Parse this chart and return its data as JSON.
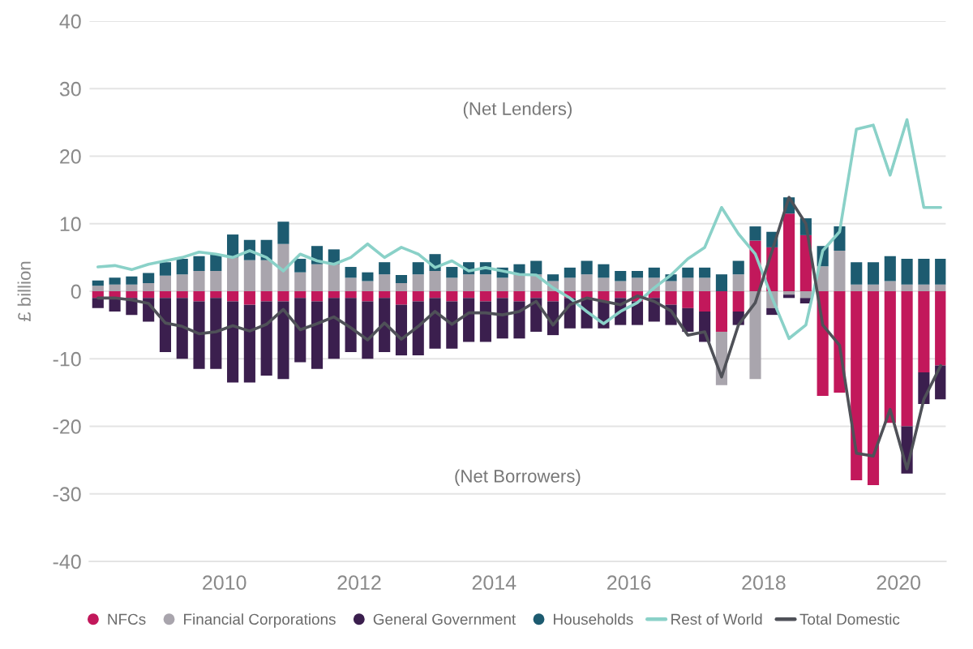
{
  "chart_data": {
    "type": "bar",
    "stacked": true,
    "x": [
      2008.125,
      2008.375,
      2008.625,
      2008.875,
      2009.125,
      2009.375,
      2009.625,
      2009.875,
      2010.125,
      2010.375,
      2010.625,
      2010.875,
      2011.125,
      2011.375,
      2011.625,
      2011.875,
      2012.125,
      2012.375,
      2012.625,
      2012.875,
      2013.125,
      2013.375,
      2013.625,
      2013.875,
      2014.125,
      2014.375,
      2014.625,
      2014.875,
      2015.125,
      2015.375,
      2015.625,
      2015.875,
      2016.125,
      2016.375,
      2016.625,
      2016.875,
      2017.125,
      2017.375,
      2017.625,
      2017.875,
      2018.125,
      2018.375,
      2018.625,
      2018.875,
      2019.125,
      2019.375,
      2019.625,
      2019.875,
      2020.125,
      2020.375,
      2020.625
    ],
    "series": [
      {
        "name": "NFCs",
        "color": "#c2185b",
        "values": [
          -1.0,
          -1.0,
          -1.0,
          -1.0,
          -1.0,
          -1.0,
          -1.5,
          -1.0,
          -1.5,
          -2.0,
          -1.5,
          -1.5,
          -1.0,
          -1.5,
          -1.0,
          -1.0,
          -1.5,
          -1.0,
          -2.0,
          -1.5,
          -1.0,
          -1.5,
          -1.0,
          -1.5,
          -1.0,
          -1.5,
          -1.0,
          -1.5,
          -1.0,
          -1.0,
          -1.5,
          -1.0,
          -1.5,
          -1.0,
          -2.0,
          -2.5,
          -3.0,
          -6.0,
          -3.0,
          7.5,
          6.5,
          11.5,
          8.3,
          -15.5,
          -15.0,
          -28.0,
          -28.7,
          -19.5,
          -20.0,
          -12.0,
          -11.0
        ]
      },
      {
        "name": "Financial Corporations",
        "color": "#a9a5ad",
        "values": [
          0.8,
          1.0,
          1.0,
          1.2,
          2.3,
          2.5,
          3.0,
          3.0,
          5.0,
          4.6,
          4.6,
          7.0,
          2.8,
          4.0,
          4.0,
          2.0,
          1.5,
          2.5,
          1.2,
          2.5,
          3.0,
          2.0,
          2.5,
          2.5,
          2.0,
          2.5,
          2.5,
          1.5,
          2.0,
          2.5,
          2.0,
          1.5,
          2.0,
          2.0,
          1.5,
          2.0,
          2.0,
          -7.9,
          2.5,
          -13.0,
          -2.5,
          -0.5,
          -1.0,
          3.7,
          6.0,
          1.0,
          1.0,
          1.5,
          1.0,
          1.0,
          1.0
        ]
      },
      {
        "name": "General Government",
        "color": "#3b1f4e",
        "values": [
          -1.5,
          -2.0,
          -2.5,
          -3.5,
          -8.0,
          -9.0,
          -10.0,
          -10.5,
          -12.0,
          -11.5,
          -11.0,
          -11.5,
          -9.5,
          -10.0,
          -9.0,
          -8.0,
          -8.5,
          -8.0,
          -7.5,
          -8.0,
          -7.5,
          -7.0,
          -6.5,
          -6.0,
          -6.0,
          -5.5,
          -5.0,
          -5.0,
          -4.5,
          -4.5,
          -4.0,
          -4.0,
          -3.5,
          -3.5,
          -3.0,
          -3.5,
          -4.5,
          null,
          -2.0,
          null,
          -1.0,
          -0.5,
          -0.8,
          null,
          null,
          null,
          null,
          null,
          -7.0,
          -4.7,
          -5.0
        ]
      },
      {
        "name": "Households",
        "color": "#1d5b70",
        "values": [
          0.8,
          1.0,
          1.2,
          1.5,
          2.0,
          2.3,
          2.2,
          2.5,
          3.4,
          3.0,
          3.0,
          3.3,
          2.0,
          2.7,
          2.2,
          1.6,
          1.3,
          1.8,
          1.2,
          1.8,
          2.5,
          1.6,
          1.8,
          1.8,
          1.5,
          1.5,
          2.0,
          1.0,
          1.5,
          2.0,
          2.0,
          1.5,
          1.0,
          1.5,
          1.0,
          1.5,
          1.5,
          2.5,
          2.0,
          2.1,
          2.3,
          2.4,
          2.5,
          3.0,
          3.6,
          3.3,
          3.3,
          3.7,
          3.8,
          3.8,
          3.8
        ]
      },
      {
        "name": "Rest of World",
        "type": "line",
        "color": "#8ad1c8",
        "values": [
          3.6,
          3.8,
          3.2,
          4.0,
          4.5,
          5.0,
          5.8,
          5.5,
          5.0,
          6.0,
          5.0,
          3.0,
          5.5,
          4.5,
          4.0,
          5.0,
          7.0,
          5.0,
          6.5,
          5.5,
          3.5,
          4.5,
          3.0,
          3.5,
          3.0,
          2.5,
          2.4,
          0.5,
          -1.0,
          -3.0,
          -4.8,
          -3.0,
          -1.7,
          0.5,
          2.4,
          4.8,
          6.5,
          12.4,
          8.5,
          5.5,
          -1.0,
          -7.0,
          -5.0,
          6.0,
          8.8,
          24.0,
          24.6,
          17.2,
          25.4,
          12.4,
          12.4
        ]
      },
      {
        "name": "Total Domestic",
        "type": "line",
        "color": "#4f5158",
        "values": [
          -1.0,
          -1.0,
          -1.3,
          -1.8,
          -4.7,
          -5.2,
          -6.3,
          -6.0,
          -5.1,
          -5.9,
          -4.9,
          -2.7,
          -5.7,
          -4.8,
          -3.8,
          -5.4,
          -7.2,
          -4.7,
          -7.1,
          -5.2,
          -3.0,
          -4.9,
          -3.2,
          -3.2,
          -3.5,
          -3.0,
          -1.5,
          -5.0,
          -2.0,
          -1.0,
          -1.5,
          -2.0,
          -0.7,
          -1.5,
          -2.9,
          -6.5,
          -6.0,
          -12.7,
          -5.0,
          -1.7,
          6.0,
          13.9,
          10.0,
          -5.0,
          -8.0,
          -24.0,
          -24.4,
          -17.5,
          -26.3,
          -16.0,
          -11.0
        ]
      }
    ],
    "xlim": [
      2008,
      2020.7
    ],
    "xticks": [
      2010,
      2012,
      2014,
      2016,
      2018,
      2020
    ],
    "ylim": [
      -40,
      40
    ],
    "yticks": [
      -40,
      -30,
      -20,
      -10,
      0,
      10,
      20,
      30,
      40
    ],
    "ylabel": "£ billion",
    "annotations": [
      "(Net Lenders)",
      "(Net Borrowers)"
    ],
    "grid": "y",
    "legend": "bottom"
  }
}
